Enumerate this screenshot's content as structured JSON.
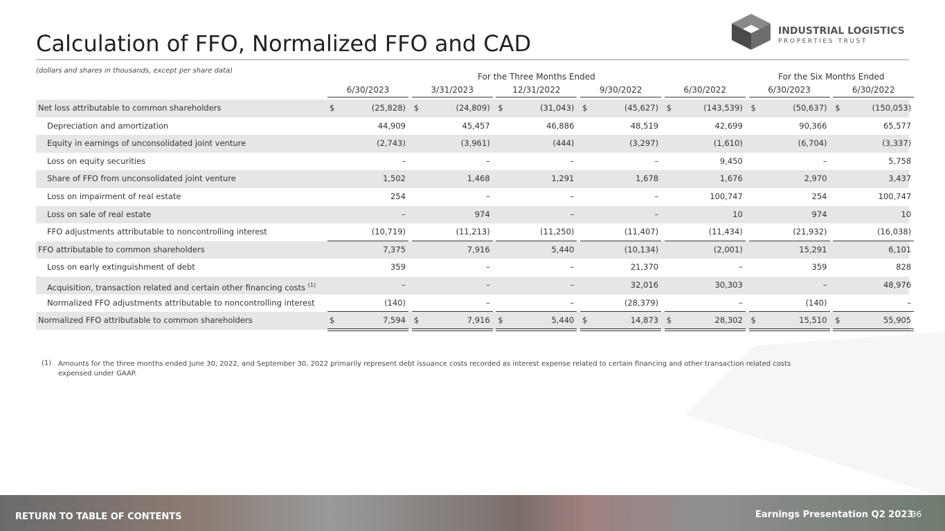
{
  "header": {
    "title": "Calculation of FFO, Normalized FFO and CAD",
    "logo_line1": "INDUSTRIAL LOGISTICS",
    "logo_line2": "PROPERTIES TRUST"
  },
  "table": {
    "note": "(dollars and shares in thousands, except per share data)",
    "currency_symbol": "$",
    "groups": [
      "For the Three Months Ended",
      "For the Six Months Ended"
    ],
    "columns": [
      "6/30/2023",
      "3/31/2023",
      "12/31/2022",
      "9/30/2022",
      "6/30/2022",
      "6/30/2023",
      "6/30/2022"
    ],
    "rows": [
      {
        "label": "Net loss attributable to common shareholders",
        "values": [
          "(25,828)",
          "(24,809)",
          "(31,043)",
          "(45,627)",
          "(143,539)",
          "(50,637)",
          "(150,053)"
        ]
      },
      {
        "label": "Depreciation and amortization",
        "values": [
          "44,909",
          "45,457",
          "46,886",
          "48,519",
          "42,699",
          "90,366",
          "65,577"
        ]
      },
      {
        "label": "Equity in earnings of unconsolidated joint venture",
        "values": [
          "(2,743)",
          "(3,961)",
          "(444)",
          "(3,297)",
          "(1,610)",
          "(6,704)",
          "(3,337)"
        ]
      },
      {
        "label": "Loss on equity securities",
        "values": [
          "–",
          "–",
          "–",
          "–",
          "9,450",
          "–",
          "5,758"
        ]
      },
      {
        "label": "Share of FFO from unconsolidated joint venture",
        "values": [
          "1,502",
          "1,468",
          "1,291",
          "1,678",
          "1,676",
          "2,970",
          "3,437"
        ]
      },
      {
        "label": "Loss on impairment of real estate",
        "values": [
          "254",
          "–",
          "–",
          "–",
          "100,747",
          "254",
          "100,747"
        ]
      },
      {
        "label": "Loss on sale of real estate",
        "values": [
          "–",
          "974",
          "–",
          "–",
          "10",
          "974",
          "10"
        ]
      },
      {
        "label": "FFO adjustments attributable to noncontrolling interest",
        "values": [
          "(10,719)",
          "(11,213)",
          "(11,250)",
          "(11,407)",
          "(11,434)",
          "(21,932)",
          "(16,038)"
        ]
      },
      {
        "label": "FFO attributable to common shareholders",
        "values": [
          "7,375",
          "7,916",
          "5,440",
          "(10,134)",
          "(2,001)",
          "15,291",
          "6,101"
        ]
      },
      {
        "label": "Loss on early extinguishment of debt",
        "values": [
          "359",
          "–",
          "–",
          "21,370",
          "–",
          "359",
          "828"
        ]
      },
      {
        "label": "Acquisition, transaction related and certain other financing costs",
        "note": "(1)",
        "values": [
          "–",
          "–",
          "–",
          "32,016",
          "30,303",
          "–",
          "48,976"
        ]
      },
      {
        "label": "Normalized FFO adjustments attributable to noncontrolling interest",
        "values": [
          "(140)",
          "–",
          "–",
          "(28,379)",
          "–",
          "(140)",
          "–"
        ]
      },
      {
        "label": "Normalized FFO attributable to common shareholders",
        "values": [
          "7,594",
          "7,916",
          "5,440",
          "14,873",
          "28,302",
          "15,510",
          "55,905"
        ]
      }
    ]
  },
  "footnote": {
    "marker": "(1)",
    "text": "Amounts for the three months ended June 30, 2022, and September 30, 2022 primarily represent debt issuance costs recorded as interest expense related to certain financing and other transaction related costs expensed under GAAP."
  },
  "footer": {
    "link": "RETURN TO TABLE OF CONTENTS",
    "caption": "Earnings Presentation Q2 2023",
    "page": "36"
  }
}
